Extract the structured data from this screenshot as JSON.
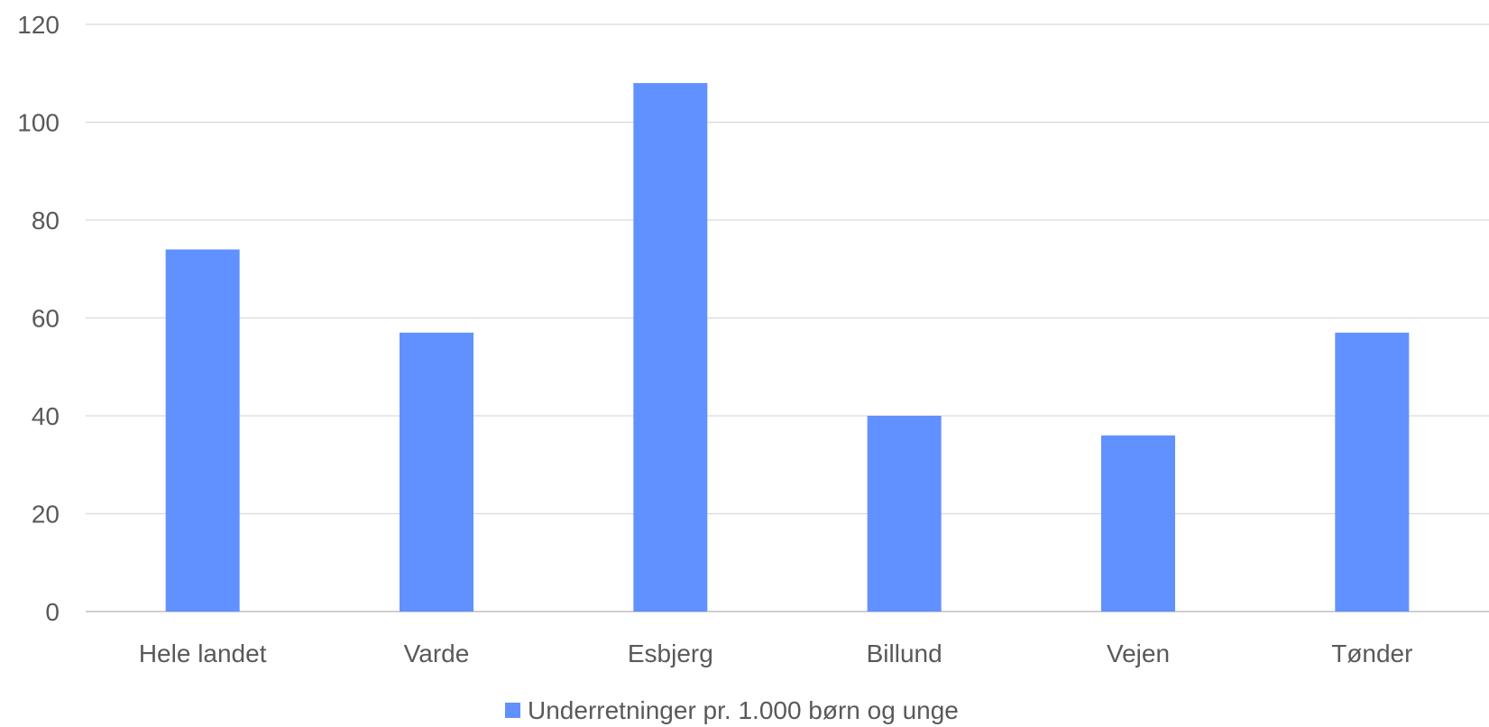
{
  "chart_data": {
    "type": "bar",
    "categories": [
      "Hele landet",
      "Varde",
      "Esbjerg",
      "Billund",
      "Vejen",
      "Tønder"
    ],
    "series": [
      {
        "name": "Underretninger pr. 1.000 børn og unge",
        "values": [
          74,
          57,
          108,
          40,
          36,
          57
        ],
        "color": "#6190FF"
      }
    ],
    "y_ticks": [
      "0",
      "20",
      "40",
      "60",
      "80",
      "100",
      "120"
    ],
    "ylim": [
      0,
      120
    ],
    "grid": true,
    "legend_position": "bottom",
    "title": "",
    "xlabel": "",
    "ylabel": ""
  }
}
